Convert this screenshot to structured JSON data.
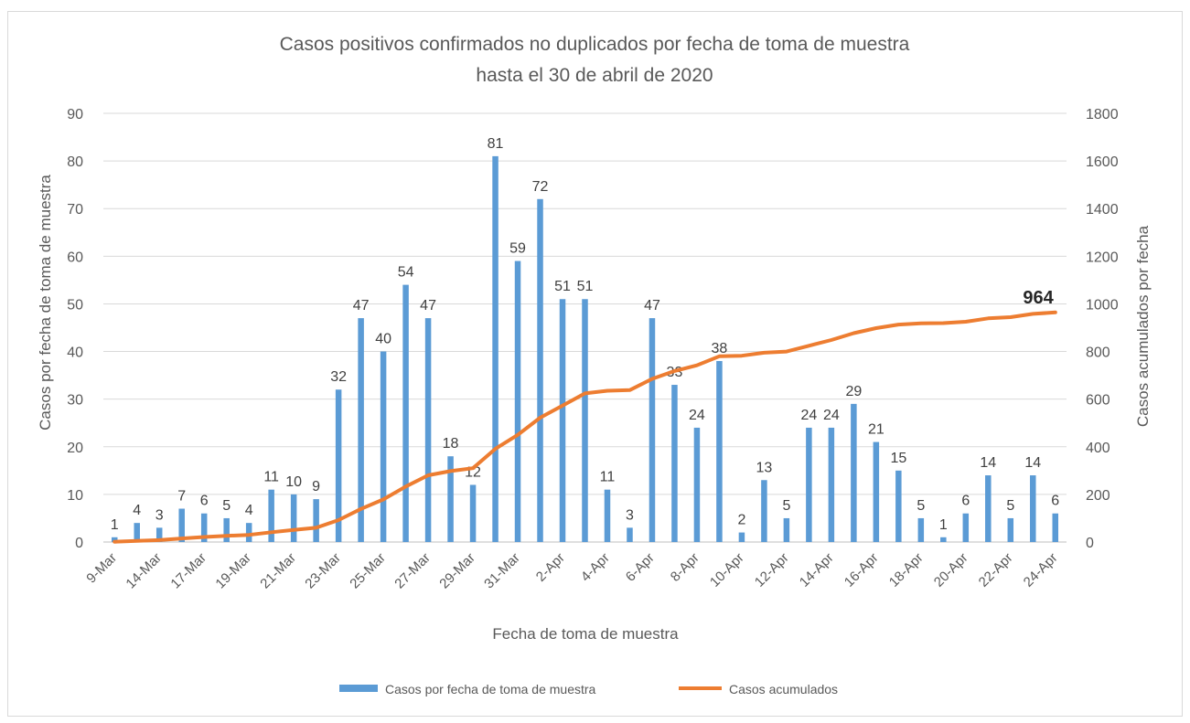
{
  "chart_data": {
    "type": "bar+line",
    "title": "Casos positivos confirmados no duplicados por fecha de toma de muestra",
    "subtitle": "hasta el 30 de abril de 2020",
    "xlabel": "Fecha de toma de muestra",
    "ylabel_left": "Casos por fecha de toma de muestra",
    "ylabel_right": "Casos acumulados por fecha",
    "ylim_left": [
      0,
      90
    ],
    "ylim_right": [
      0,
      1800
    ],
    "yticks_left": [
      "0",
      "10",
      "20",
      "30",
      "40",
      "50",
      "60",
      "70",
      "80",
      "90"
    ],
    "yticks_right": [
      "0",
      "200",
      "400",
      "600",
      "800",
      "1000",
      "1200",
      "1400",
      "1600",
      "1800"
    ],
    "x_tick_labels": [
      "9-Mar",
      "14-Mar",
      "17-Mar",
      "19-Mar",
      "21-Mar",
      "23-Mar",
      "25-Mar",
      "27-Mar",
      "29-Mar",
      "31-Mar",
      "2-Apr",
      "4-Apr",
      "6-Apr",
      "8-Apr",
      "10-Apr",
      "12-Apr",
      "14-Apr",
      "16-Apr",
      "18-Apr",
      "20-Apr",
      "22-Apr",
      "24-Apr"
    ],
    "grid": true,
    "legend_position": "bottom",
    "colors": {
      "bar": "#5b9bd5",
      "line": "#ed7d31"
    },
    "series": [
      {
        "name": "Casos por fecha de toma de muestra",
        "type": "bar",
        "axis": "left",
        "values": [
          1,
          4,
          3,
          7,
          6,
          5,
          4,
          11,
          10,
          9,
          32,
          47,
          40,
          54,
          47,
          18,
          12,
          81,
          59,
          72,
          51,
          51,
          11,
          3,
          47,
          33,
          24,
          38,
          2,
          13,
          5,
          24,
          24,
          29,
          21,
          15,
          5,
          1,
          6,
          14,
          5,
          14,
          6
        ]
      },
      {
        "name": "Casos acumulados",
        "type": "line",
        "axis": "right",
        "values": [
          1,
          5,
          8,
          15,
          21,
          26,
          30,
          41,
          51,
          60,
          92,
          139,
          179,
          233,
          280,
          298,
          310,
          391,
          450,
          522,
          573,
          624,
          635,
          638,
          685,
          718,
          742,
          780,
          782,
          795,
          800,
          824,
          848,
          877,
          898,
          913,
          918,
          919,
          925,
          939,
          944,
          958,
          964
        ],
        "end_label": "964"
      }
    ]
  }
}
